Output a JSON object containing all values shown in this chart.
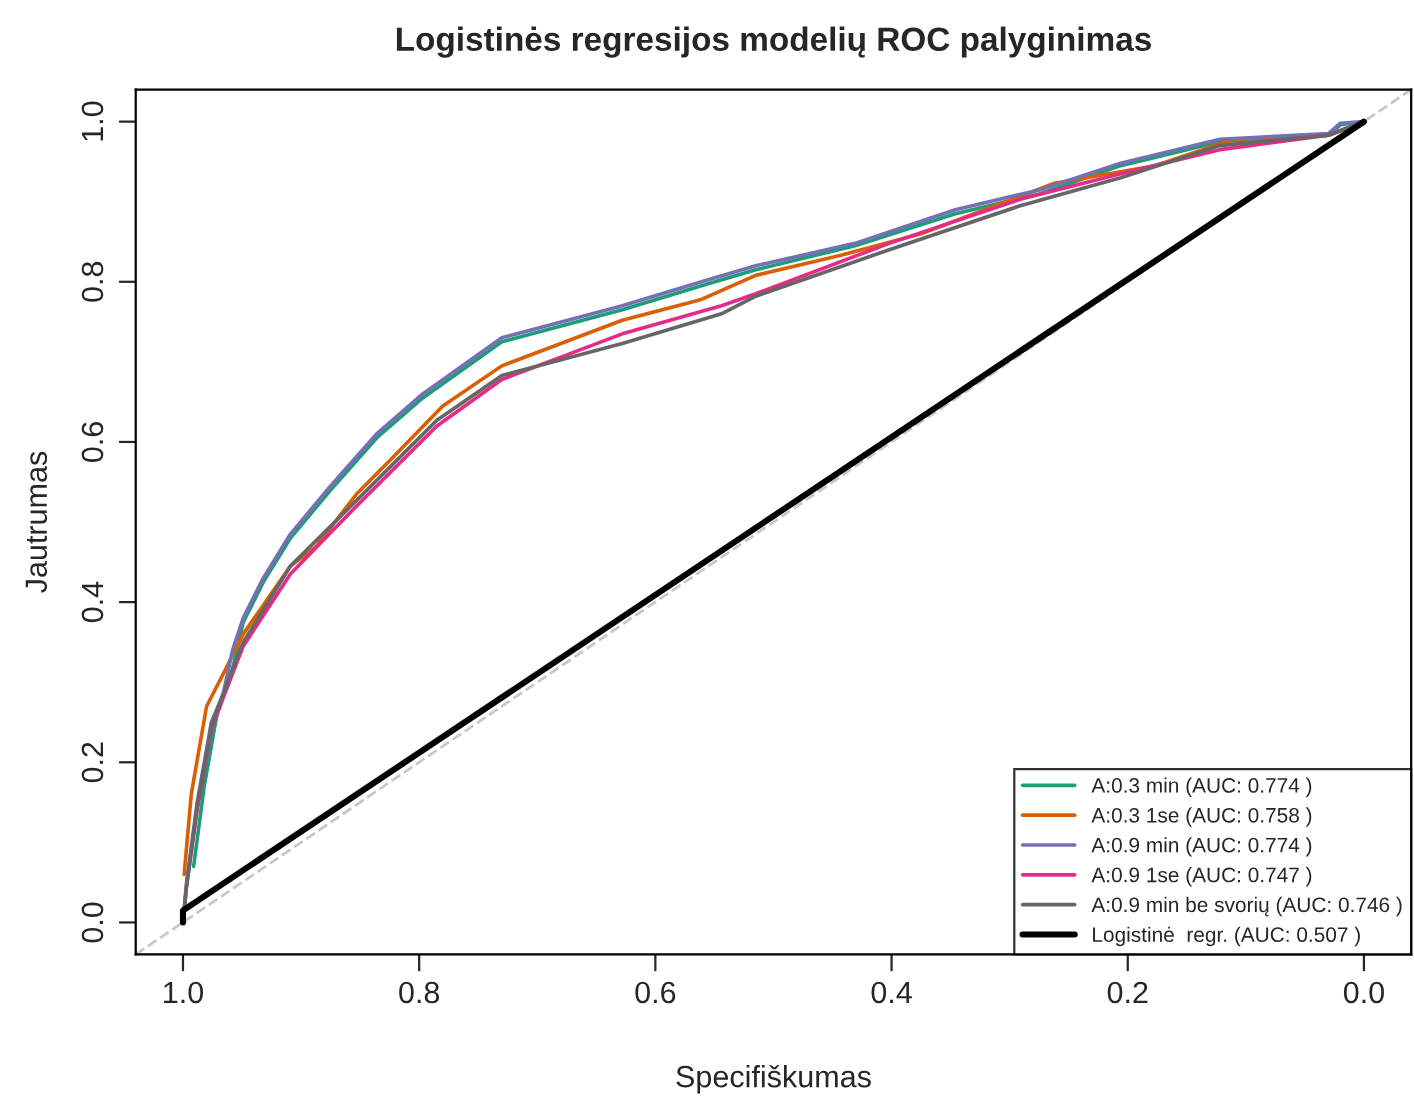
{
  "chart_data": {
    "type": "line",
    "title": "Logistinės regresijos modelių ROC palyginimas",
    "xlabel": "Specifiškumas",
    "ylabel": "Jautrumas",
    "xlim": [
      1.04,
      -0.04
    ],
    "ylim": [
      -0.04,
      1.04
    ],
    "xticks": [
      {
        "value": 1.0,
        "label": "1.0"
      },
      0.8,
      0.6,
      0.4,
      0.2,
      {
        "value": 0.0,
        "label": "0.0"
      }
    ],
    "yticks": [
      {
        "value": 0.0,
        "label": "0.0"
      },
      0.2,
      0.4,
      0.6,
      0.8,
      {
        "value": 1.0,
        "label": "1.0"
      }
    ],
    "grid": false,
    "legend": "bottom right",
    "marker": "none",
    "line_style": "solid",
    "series": [
      {
        "color": "#c8c8c8",
        "line_style": "dashed",
        "x": [
          1.04,
          -0.04
        ],
        "values": [
          -0.04,
          1.04
        ]
      },
      {
        "name": "A:0.3 min (AUC: 0.774 )",
        "color": "#1b9e77",
        "x": [
          0.991,
          0.982,
          0.97,
          0.961,
          0.955,
          0.949,
          0.932,
          0.909,
          0.875,
          0.836,
          0.797,
          0.73,
          0.628,
          0.561,
          0.515,
          0.431,
          0.346,
          0.274,
          0.206,
          0.122,
          0.03,
          0.02,
          0.0
        ],
        "values": [
          0.07,
          0.17,
          0.27,
          0.3,
          0.335,
          0.375,
          0.425,
          0.48,
          0.54,
          0.605,
          0.655,
          0.725,
          0.765,
          0.795,
          0.815,
          0.845,
          0.885,
          0.91,
          0.945,
          0.975,
          0.983,
          0.996,
          1.0
        ]
      },
      {
        "name": "A:0.3 1se (AUC: 0.758 )",
        "color": "#d95f02",
        "x": [
          0.999,
          0.993,
          0.98,
          0.966,
          0.949,
          0.909,
          0.887,
          0.853,
          0.824,
          0.78,
          0.73,
          0.628,
          0.561,
          0.515,
          0.443,
          0.375,
          0.262,
          0.177,
          0.11,
          0.03,
          0.0
        ],
        "values": [
          0.06,
          0.16,
          0.27,
          0.31,
          0.36,
          0.445,
          0.47,
          0.535,
          0.578,
          0.645,
          0.695,
          0.752,
          0.778,
          0.808,
          0.833,
          0.86,
          0.923,
          0.945,
          0.978,
          0.983,
          1.0
        ]
      },
      {
        "name": "A:0.9 min (AUC: 0.774 )",
        "color": "#7570b3",
        "x": [
          1.0,
          0.997,
          0.988,
          0.976,
          0.966,
          0.958,
          0.949,
          0.932,
          0.909,
          0.875,
          0.836,
          0.797,
          0.73,
          0.628,
          0.561,
          0.515,
          0.431,
          0.346,
          0.274,
          0.206,
          0.122,
          0.03,
          0.02,
          0.0
        ],
        "values": [
          0.0,
          0.05,
          0.15,
          0.25,
          0.285,
          0.34,
          0.38,
          0.43,
          0.485,
          0.545,
          0.61,
          0.66,
          0.73,
          0.77,
          0.8,
          0.82,
          0.848,
          0.89,
          0.915,
          0.948,
          0.978,
          0.985,
          0.998,
          1.0
        ]
      },
      {
        "name": "A:0.9 1se (AUC: 0.747 )",
        "color": "#e7298a",
        "x": [
          1.0,
          0.997,
          0.988,
          0.976,
          0.966,
          0.949,
          0.909,
          0.853,
          0.785,
          0.73,
          0.628,
          0.544,
          0.515,
          0.402,
          0.291,
          0.206,
          0.122,
          0.03,
          0.0
        ],
        "values": [
          0.0,
          0.045,
          0.14,
          0.24,
          0.28,
          0.345,
          0.435,
          0.52,
          0.62,
          0.678,
          0.735,
          0.77,
          0.785,
          0.848,
          0.903,
          0.935,
          0.965,
          0.983,
          1.0
        ]
      },
      {
        "name": "A:0.9 min be svorių (AUC: 0.746 )",
        "color": "#666666",
        "x": [
          1.0,
          0.997,
          0.988,
          0.976,
          0.966,
          0.949,
          0.909,
          0.853,
          0.785,
          0.73,
          0.628,
          0.544,
          0.515,
          0.402,
          0.291,
          0.206,
          0.122,
          0.03,
          0.0
        ],
        "values": [
          0.0,
          0.045,
          0.145,
          0.245,
          0.285,
          0.35,
          0.445,
          0.527,
          0.627,
          0.683,
          0.723,
          0.76,
          0.782,
          0.84,
          0.895,
          0.93,
          0.97,
          0.983,
          1.0
        ]
      },
      {
        "name": "Logistinė  regr. (AUC: 0.507 )",
        "color": "#000000",
        "x": [
          1.0,
          1.0,
          0.0
        ],
        "values": [
          0.0,
          0.015,
          1.0
        ]
      }
    ]
  }
}
